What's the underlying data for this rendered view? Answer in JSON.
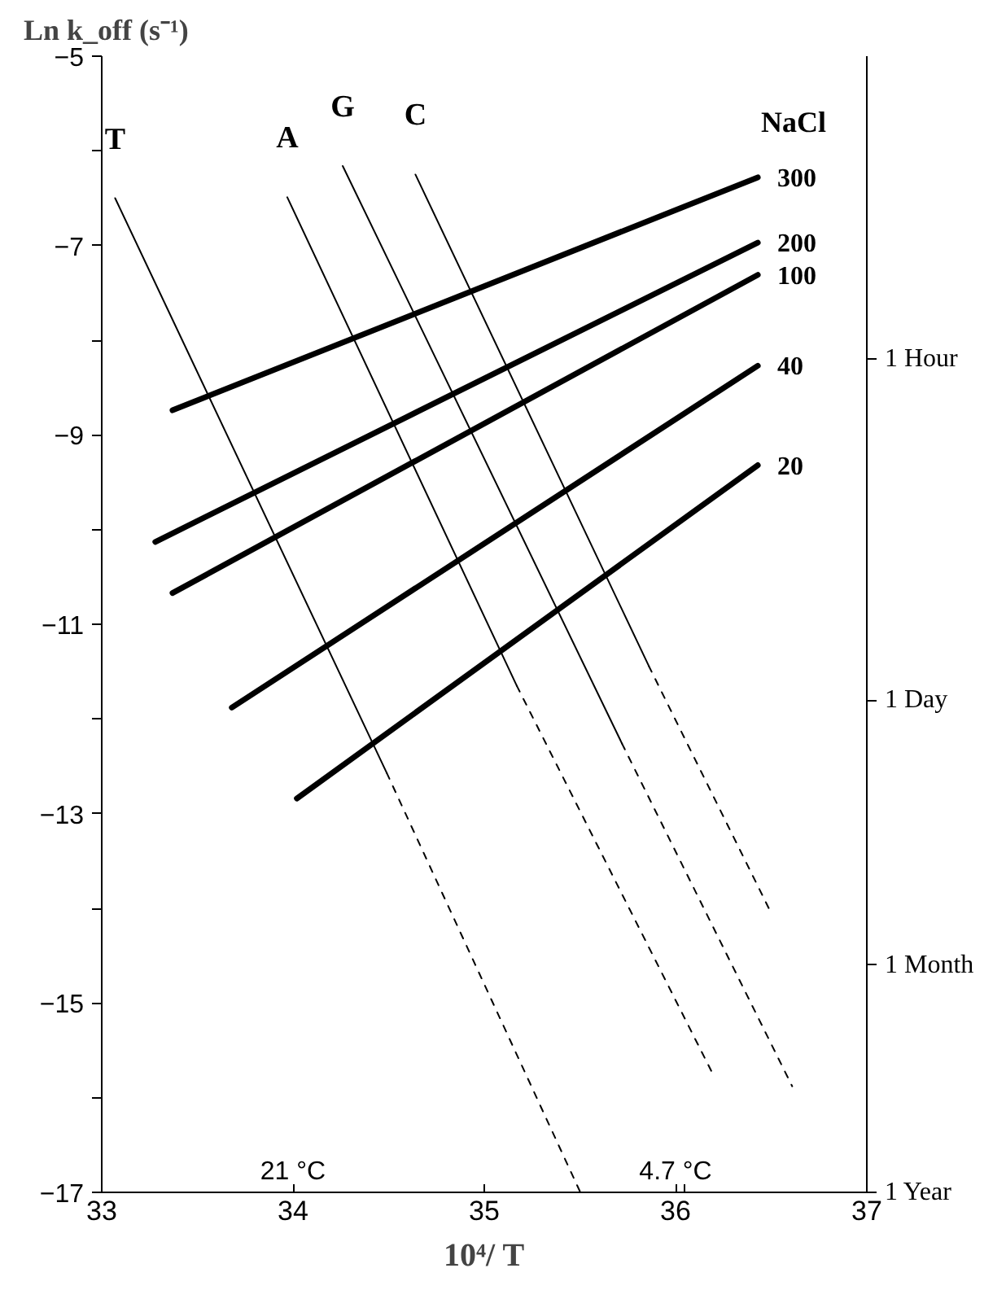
{
  "chart_data": {
    "type": "line",
    "title": "Ln k_off (s⁻¹)",
    "xlabel": "10⁴/ T",
    "legend_title": "NaCl",
    "xlim": [
      33,
      37
    ],
    "xticks": [
      33,
      34,
      35,
      36,
      37,
      {
        "value": 36.05,
        "label": null
      }
    ],
    "ylim": [
      -17,
      -5
    ],
    "yticks": [
      -5,
      {
        "value": -6,
        "label": null
      },
      -7,
      {
        "value": -8,
        "label": null
      },
      -9,
      {
        "value": -10,
        "label": null
      },
      -11,
      {
        "value": -12,
        "label": null
      },
      -13,
      {
        "value": -14,
        "label": null
      },
      -15,
      {
        "value": -16,
        "label": null
      },
      -17
    ],
    "y2_categories": [
      null,
      null,
      null,
      null,
      null,
      null,
      null,
      null,
      "1 Hour",
      null,
      null,
      null,
      null,
      null,
      null,
      null,
      null,
      "1 Day",
      null,
      null,
      null,
      null,
      null,
      null,
      "1 Month",
      null,
      null,
      null,
      null,
      null,
      "1 Year"
    ],
    "series": [
      {
        "name": "300",
        "color": "#000000",
        "x": [
          33.37,
          36.43
        ],
        "values": [
          -8.74,
          -6.28
        ]
      },
      {
        "name": "200",
        "color": "#000000",
        "x": [
          33.28,
          36.43
        ],
        "values": [
          -10.13,
          -6.97
        ]
      },
      {
        "name": "100",
        "color": "#000000",
        "x": [
          33.37,
          36.43
        ],
        "values": [
          -10.67,
          -7.31
        ]
      },
      {
        "name": "40",
        "color": "#000000",
        "x": [
          33.68,
          36.43
        ],
        "values": [
          -11.88,
          -8.27
        ]
      },
      {
        "name": "20",
        "color": "#000000",
        "x": [
          34.02,
          36.43
        ],
        "values": [
          -12.84,
          -9.32
        ]
      },
      {
        "name": "T",
        "color": "#000000",
        "line_style": "solid",
        "x": [
          33.07,
          34.49
        ],
        "values": [
          -6.5,
          -12.57
        ]
      },
      {
        "color": "#000000",
        "line_style": "dashed",
        "x": [
          34.49,
          35.5
        ],
        "values": [
          -12.57,
          -16.99
        ]
      },
      {
        "name": "A",
        "color": "#000000",
        "line_style": "solid",
        "x": [
          33.97,
          35.17
        ],
        "values": [
          -6.49,
          -11.65
        ]
      },
      {
        "color": "#000000",
        "line_style": "dashed",
        "x": [
          35.17,
          36.2
        ],
        "values": [
          -11.65,
          -15.77
        ]
      },
      {
        "name": "G",
        "color": "#000000",
        "line_style": "solid",
        "x": [
          34.26,
          35.72
        ],
        "values": [
          -6.16,
          -12.26
        ]
      },
      {
        "color": "#000000",
        "line_style": "dashed",
        "x": [
          35.72,
          36.61
        ],
        "values": [
          -12.26,
          -15.88
        ]
      },
      {
        "name": "C",
        "color": "#000000",
        "line_style": "solid",
        "x": [
          34.64,
          35.86
        ],
        "values": [
          -6.25,
          -11.44
        ]
      },
      {
        "color": "#000000",
        "line_style": "dashed",
        "x": [
          35.86,
          36.5
        ],
        "values": [
          -11.44,
          -14.05
        ]
      }
    ],
    "annotations": [
      "21 °C",
      "4.7 °C"
    ]
  }
}
